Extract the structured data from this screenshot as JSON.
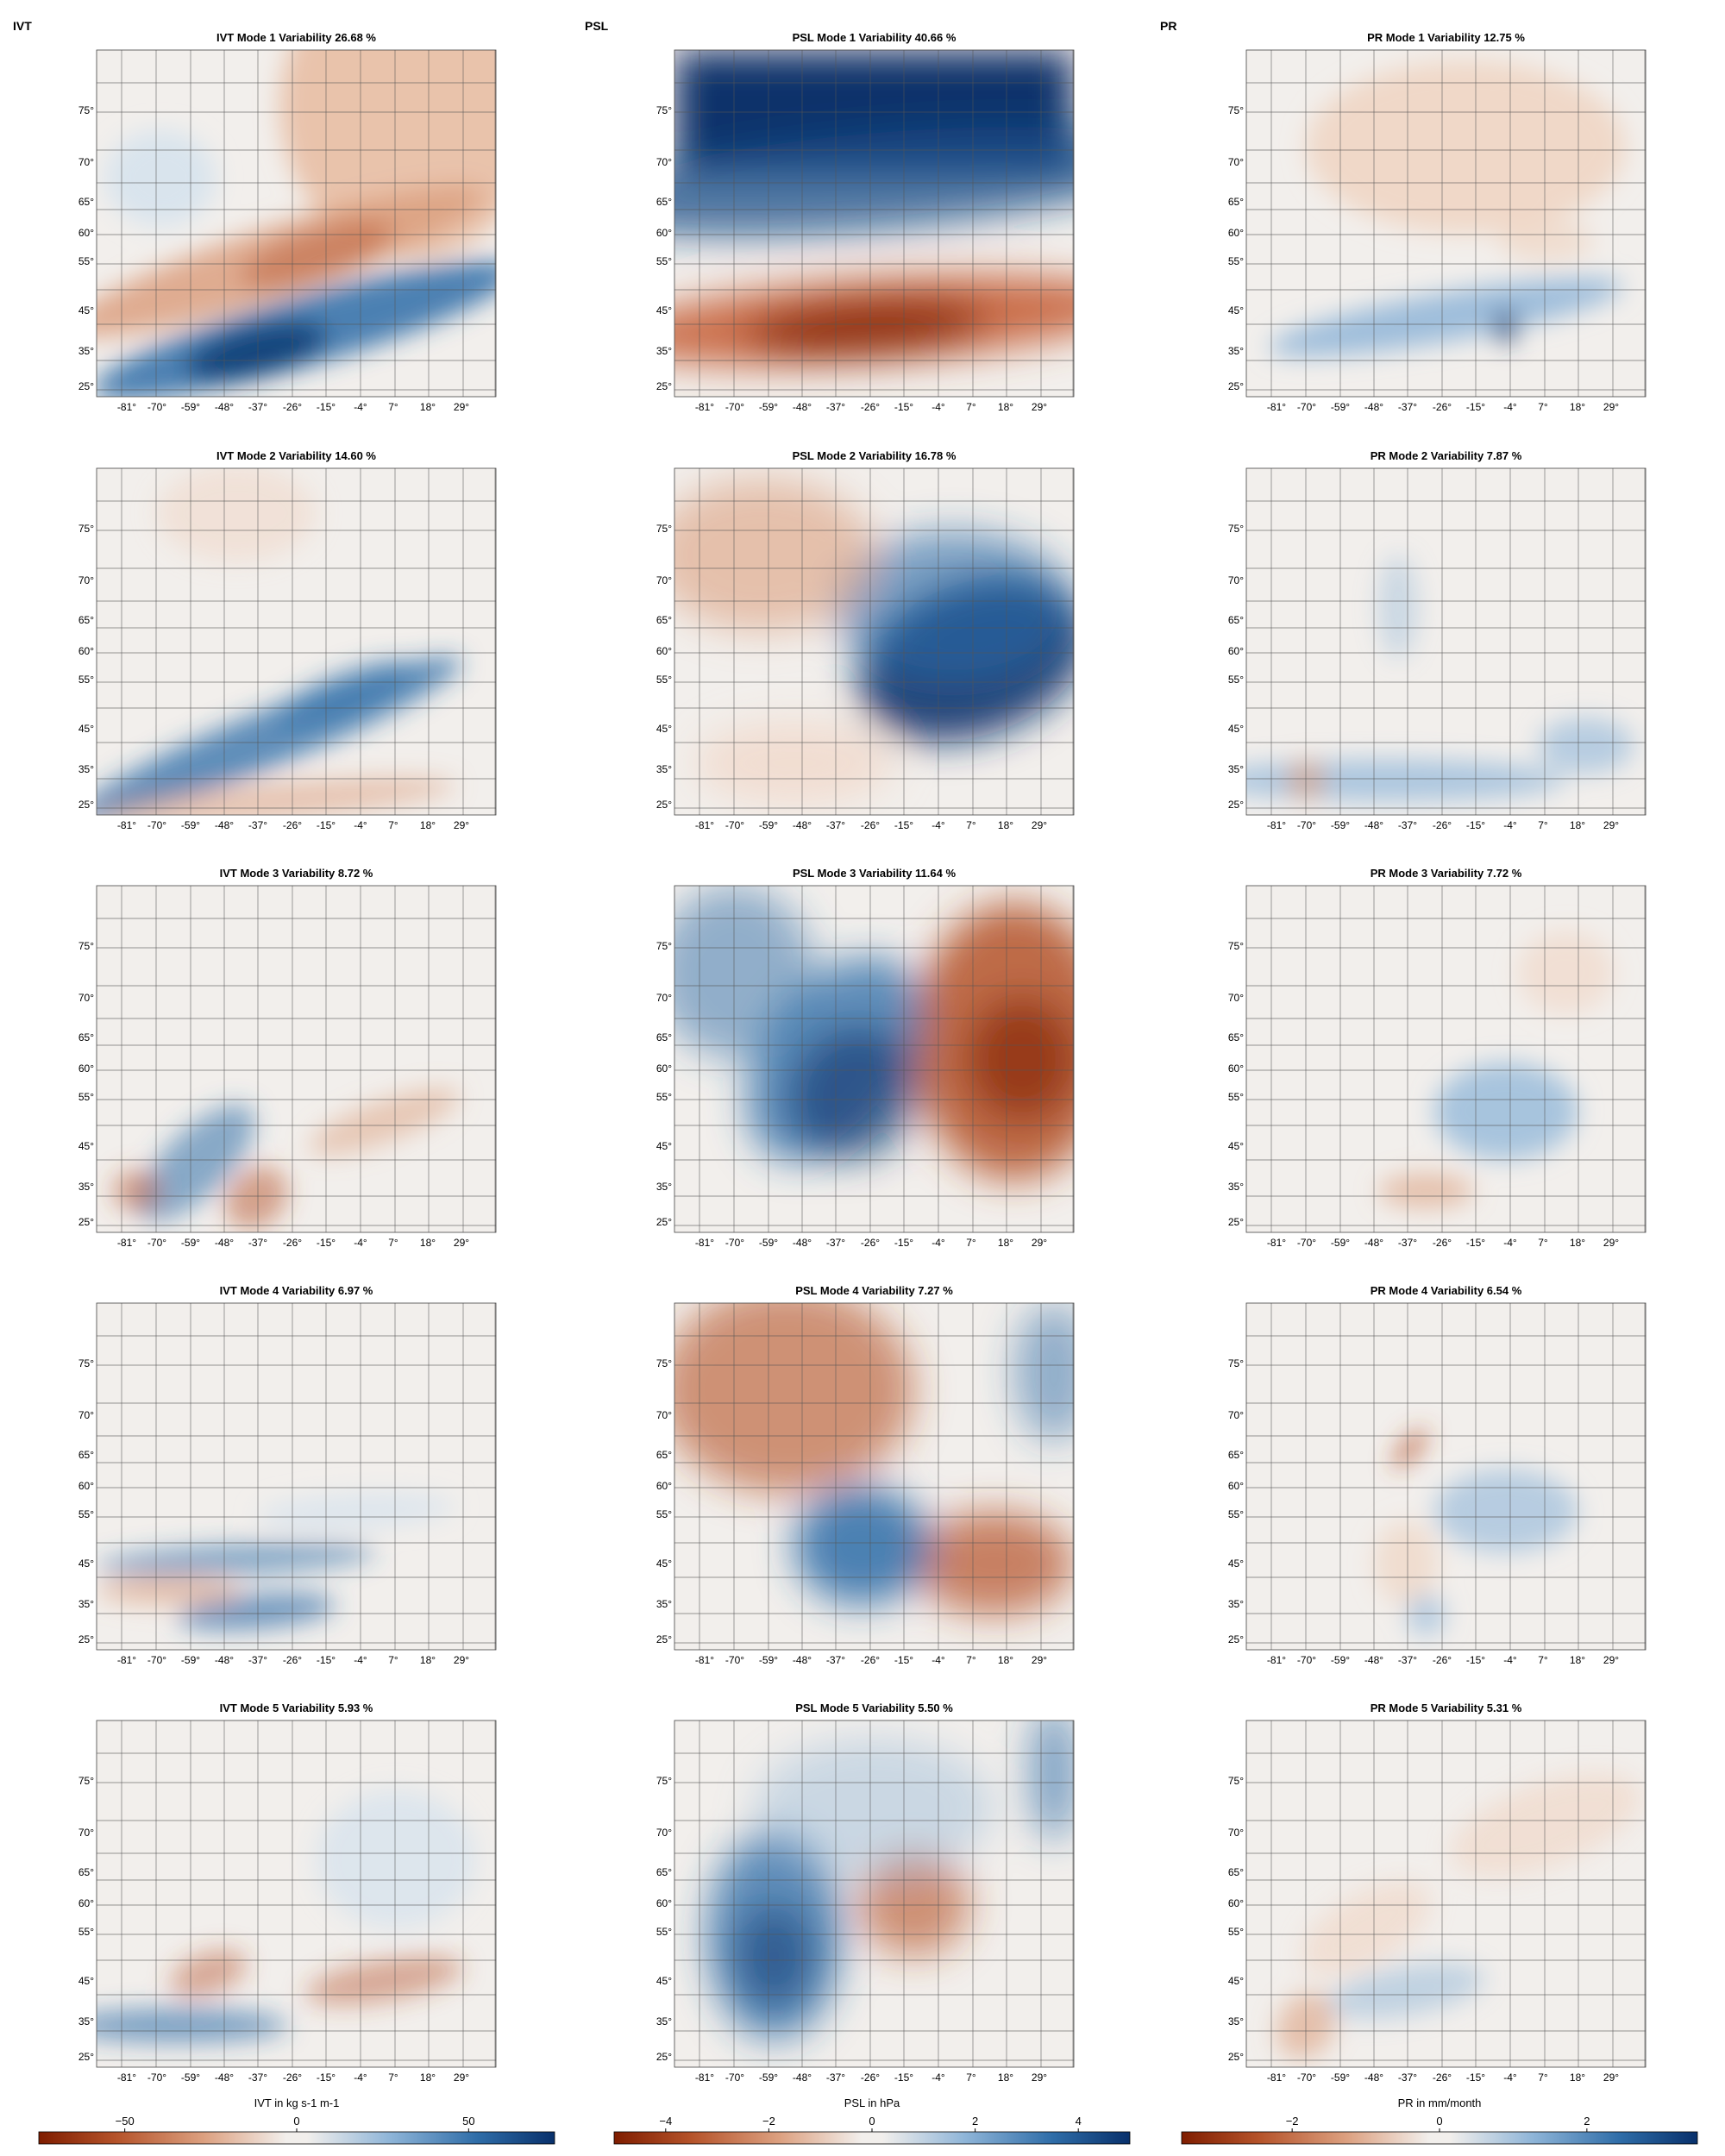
{
  "columns": [
    "IVT",
    "PSL",
    "PR"
  ],
  "chart_data": [
    {
      "type": "heatmap",
      "variable": "IVT",
      "panel_titles": [
        "IVT Mode 1 Variability 26.68 %",
        "IVT Mode 2 Variability 14.60 %",
        "IVT Mode 3 Variability 8.72 %",
        "IVT Mode 4 Variability 6.97 %",
        "IVT Mode 5 Variability 5.93 %"
      ],
      "x_ticks": [
        "-81°",
        "-70°",
        "-59°",
        "-48°",
        "-37°",
        "-26°",
        "-15°",
        "-4°",
        "7°",
        "18°",
        "29°"
      ],
      "y_ticks": [
        "75°",
        "70°",
        "65°",
        "60°",
        "55°",
        "45°",
        "35°",
        "25°"
      ],
      "colorbar": {
        "label": "IVT in kg s-1 m-1",
        "ticks": [
          "−50",
          "0",
          "50"
        ],
        "range": [
          -75,
          75
        ]
      }
    },
    {
      "type": "heatmap",
      "variable": "PSL",
      "panel_titles": [
        "PSL Mode 1 Variability 40.66 %",
        "PSL Mode 2 Variability 16.78 %",
        "PSL Mode 3 Variability 11.64 %",
        "PSL Mode 4 Variability 7.27 %",
        "PSL Mode 5 Variability 5.50 %"
      ],
      "x_ticks": [
        "-81°",
        "-70°",
        "-59°",
        "-48°",
        "-37°",
        "-26°",
        "-15°",
        "-4°",
        "7°",
        "18°",
        "29°"
      ],
      "y_ticks": [
        "75°",
        "70°",
        "65°",
        "60°",
        "55°",
        "45°",
        "35°",
        "25°"
      ],
      "colorbar": {
        "label": "PSL in hPa",
        "ticks": [
          "−4",
          "−2",
          "0",
          "2",
          "4"
        ],
        "range": [
          -5,
          5
        ]
      }
    },
    {
      "type": "heatmap",
      "variable": "PR",
      "panel_titles": [
        "PR Mode 1 Variability 12.75 %",
        "PR Mode 2 Variability 7.87 %",
        "PR Mode 3 Variability 7.72 %",
        "PR Mode 4 Variability 6.54 %",
        "PR Mode 5 Variability 5.31 %"
      ],
      "x_ticks": [
        "-81°",
        "-70°",
        "-59°",
        "-48°",
        "-37°",
        "-26°",
        "-15°",
        "-4°",
        "7°",
        "18°",
        "29°"
      ],
      "y_ticks": [
        "75°",
        "70°",
        "65°",
        "60°",
        "55°",
        "45°",
        "35°",
        "25°"
      ],
      "colorbar": {
        "label": "PR in mm/month",
        "ticks": [
          "−2",
          "0",
          "2"
        ],
        "range": [
          -3.5,
          3.5
        ]
      }
    }
  ],
  "colors": {
    "negative": "#7f1d00",
    "mid": "#f2efec",
    "positive": "#08306b",
    "coast": "#000000",
    "grid": "#555555"
  }
}
